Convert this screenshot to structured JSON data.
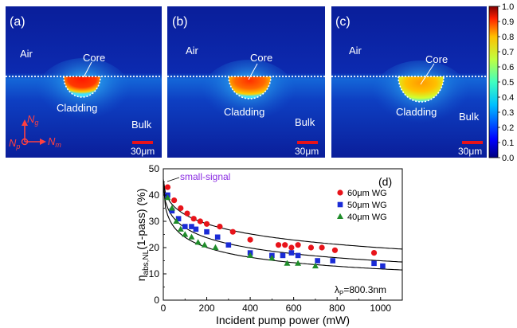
{
  "panels": [
    {
      "id": "a",
      "label": "(a)",
      "air": "Air",
      "core": "Core",
      "cladding": "Cladding",
      "bulk": "Bulk",
      "scale": "30μm",
      "axes": {
        "vertical": "N",
        "vertical_sub": "g",
        "horizontal": "N",
        "horizontal_sub": "m",
        "origin": "N",
        "origin_sub": "p"
      }
    },
    {
      "id": "b",
      "label": "(b)",
      "air": "Air",
      "core": "Core",
      "cladding": "Cladding",
      "bulk": "Bulk",
      "scale": "30μm"
    },
    {
      "id": "c",
      "label": "(c)",
      "air": "Air",
      "core": "Core",
      "cladding": "Cladding",
      "bulk": "Bulk",
      "scale": "30μm"
    }
  ],
  "colorbar": {
    "ticks": [
      "1.0",
      "0.9",
      "0.8",
      "0.7",
      "0.6",
      "0.5",
      "0.4",
      "0.3",
      "0.2",
      "0.1",
      "0.0"
    ],
    "range": [
      0,
      1
    ],
    "colormap": "jet"
  },
  "chart_data": {
    "type": "scatter",
    "panel_label": "(d)",
    "ylabel": "η",
    "ylabel_sub": "abs,NL",
    "ylabel_tail": "(1-pass) (%)",
    "xlabel": "Incident pump power (mW)",
    "xlim": [
      0,
      1100
    ],
    "ylim": [
      0,
      50
    ],
    "xticks": [
      0,
      200,
      400,
      600,
      800,
      1000
    ],
    "yticks": [
      0,
      10,
      20,
      30,
      40,
      50
    ],
    "annotation": "small-signal",
    "annotation2": "λ",
    "annotation2_sub": "P",
    "annotation2_tail": "=800.3nm",
    "legend_position": "top-right",
    "series": [
      {
        "name": "60μm WG",
        "marker": "circle",
        "color": "#e8131a",
        "x": [
          20,
          50,
          80,
          110,
          140,
          170,
          200,
          260,
          320,
          400,
          530,
          560,
          590,
          620,
          680,
          730,
          790,
          970
        ],
        "y": [
          43,
          38,
          35,
          33,
          31,
          30,
          29,
          28,
          26,
          23,
          21,
          21,
          20,
          21,
          20,
          20,
          19,
          18
        ],
        "fit_y0": 46,
        "fit_k": 0.75
      },
      {
        "name": "50μm WG",
        "marker": "square",
        "color": "#1a2bd6",
        "x": [
          20,
          40,
          70,
          100,
          130,
          150,
          200,
          250,
          300,
          400,
          500,
          550,
          590,
          620,
          710,
          780,
          970,
          1010
        ],
        "y": [
          40,
          34,
          31,
          28,
          28,
          27,
          26,
          24,
          21,
          18,
          17,
          17,
          18,
          17,
          15,
          15,
          14,
          13
        ],
        "fit_y0": 45,
        "fit_k": 1.15
      },
      {
        "name": "40μm WG",
        "marker": "triangle",
        "color": "#1f8c2a",
        "x": [
          20,
          40,
          60,
          80,
          100,
          130,
          160,
          190,
          240,
          400,
          500,
          570,
          620,
          700
        ],
        "y": [
          39,
          35,
          30,
          27,
          25,
          24,
          22,
          21,
          20,
          17,
          16,
          14,
          14,
          13
        ],
        "fit_y0": 45,
        "fit_k": 1.6
      }
    ]
  }
}
